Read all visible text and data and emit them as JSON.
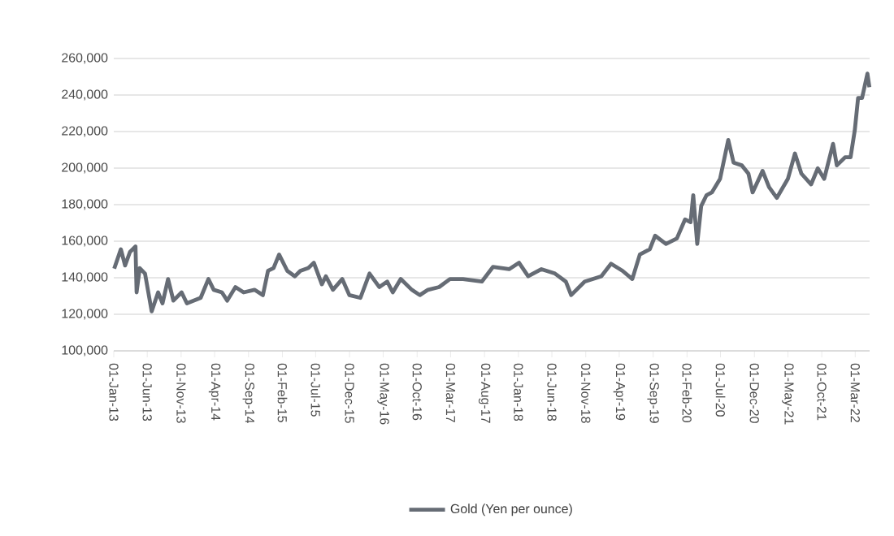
{
  "chart_data": {
    "type": "line",
    "grid": "y",
    "legend": "bottom",
    "xlim": [
      "2013-01-01",
      "2022-05-05"
    ],
    "ylim": [
      100000,
      260000
    ],
    "yticks": [
      {
        "value": 100000,
        "label": "100,000"
      },
      {
        "value": 120000,
        "label": "120,000"
      },
      {
        "value": 140000,
        "label": "140,000"
      },
      {
        "value": 160000,
        "label": "160,000"
      },
      {
        "value": 180000,
        "label": "180,000"
      },
      {
        "value": 200000,
        "label": "200,000"
      },
      {
        "value": 220000,
        "label": "220,000"
      },
      {
        "value": 240000,
        "label": "240,000"
      },
      {
        "value": 260000,
        "label": "260,000"
      }
    ],
    "xticks": [
      {
        "value": "2013-01-01",
        "label": "01-Jan-13"
      },
      {
        "value": "2013-06-01",
        "label": "01-Jun-13"
      },
      {
        "value": "2013-11-01",
        "label": "01-Nov-13"
      },
      {
        "value": "2014-04-01",
        "label": "01-Apr-14"
      },
      {
        "value": "2014-09-01",
        "label": "01-Sep-14"
      },
      {
        "value": "2015-02-01",
        "label": "01-Feb-15"
      },
      {
        "value": "2015-07-01",
        "label": "01-Jul-15"
      },
      {
        "value": "2015-12-01",
        "label": "01-Dec-15"
      },
      {
        "value": "2016-05-01",
        "label": "01-May-16"
      },
      {
        "value": "2016-10-01",
        "label": "01-Oct-16"
      },
      {
        "value": "2017-03-01",
        "label": "01-Mar-17"
      },
      {
        "value": "2017-08-01",
        "label": "01-Aug-17"
      },
      {
        "value": "2018-01-01",
        "label": "01-Jan-18"
      },
      {
        "value": "2018-06-01",
        "label": "01-Jun-18"
      },
      {
        "value": "2018-11-01",
        "label": "01-Nov-18"
      },
      {
        "value": "2019-04-01",
        "label": "01-Apr-19"
      },
      {
        "value": "2019-09-01",
        "label": "01-Sep-19"
      },
      {
        "value": "2020-02-01",
        "label": "01-Feb-20"
      },
      {
        "value": "2020-07-01",
        "label": "01-Jul-20"
      },
      {
        "value": "2020-12-01",
        "label": "01-Dec-20"
      },
      {
        "value": "2021-05-01",
        "label": "01-May-21"
      },
      {
        "value": "2021-10-01",
        "label": "01-Oct-21"
      },
      {
        "value": "2022-03-01",
        "label": "01-Mar-22"
      }
    ],
    "series": [
      {
        "name": "Gold (Yen per ounce)",
        "color": "#666c75",
        "x": [
          "2013-01-03",
          "2013-02-02",
          "2013-02-21",
          "2013-03-15",
          "2013-04-09",
          "2013-04-14",
          "2013-04-28",
          "2013-05-22",
          "2013-06-21",
          "2013-07-20",
          "2013-08-09",
          "2013-09-03",
          "2013-09-27",
          "2013-11-03",
          "2013-11-27",
          "2014-01-28",
          "2014-03-04",
          "2014-03-28",
          "2014-05-04",
          "2014-05-28",
          "2014-07-04",
          "2014-08-10",
          "2014-09-28",
          "2014-11-05",
          "2014-11-28",
          "2014-12-23",
          "2015-01-17",
          "2015-02-23",
          "2015-03-29",
          "2015-04-23",
          "2015-05-29",
          "2015-06-23",
          "2015-07-29",
          "2015-08-16",
          "2015-09-17",
          "2015-10-29",
          "2015-11-30",
          "2016-01-19",
          "2016-02-29",
          "2016-04-13",
          "2016-05-19",
          "2016-06-13",
          "2016-07-19",
          "2016-09-07",
          "2016-10-13",
          "2016-11-19",
          "2017-01-08",
          "2017-02-26",
          "2017-04-26",
          "2017-07-20",
          "2017-09-08",
          "2017-11-20",
          "2018-01-04",
          "2018-02-14",
          "2018-04-15",
          "2018-06-15",
          "2018-08-03",
          "2018-08-27",
          "2018-10-27",
          "2019-01-10",
          "2019-02-23",
          "2019-04-16",
          "2019-05-30",
          "2019-07-03",
          "2019-08-17",
          "2019-09-10",
          "2019-10-29",
          "2019-12-17",
          "2020-01-23",
          "2020-02-17",
          "2020-02-29",
          "2020-03-18",
          "2020-04-05",
          "2020-04-29",
          "2020-05-23",
          "2020-06-29",
          "2020-08-05",
          "2020-08-29",
          "2020-10-05",
          "2020-11-04",
          "2020-11-23",
          "2021-01-07",
          "2021-02-05",
          "2021-03-12",
          "2021-05-01",
          "2021-06-02",
          "2021-07-01",
          "2021-08-14",
          "2021-09-13",
          "2021-10-12",
          "2021-11-21",
          "2021-12-08",
          "2022-01-14",
          "2022-02-08",
          "2022-02-27",
          "2022-03-14",
          "2022-04-01",
          "2022-04-25",
          "2022-05-04"
        ],
        "values": [
          145000,
          155600,
          146700,
          154100,
          157100,
          132000,
          145300,
          142300,
          121600,
          132000,
          126000,
          139300,
          127500,
          132000,
          126000,
          129000,
          139300,
          133400,
          132000,
          127500,
          134900,
          132000,
          133400,
          130500,
          143800,
          145300,
          152700,
          143800,
          140800,
          143800,
          145300,
          148200,
          136400,
          140800,
          133400,
          139300,
          130500,
          129000,
          142300,
          134900,
          137900,
          132000,
          139300,
          133400,
          130500,
          133400,
          134900,
          139300,
          139300,
          137900,
          145900,
          144700,
          148200,
          140800,
          144700,
          142300,
          137900,
          130500,
          137900,
          140800,
          147700,
          143800,
          139300,
          152700,
          155600,
          163000,
          158500,
          161500,
          171900,
          170400,
          185200,
          158500,
          179300,
          185200,
          186700,
          194100,
          215400,
          203000,
          201500,
          197000,
          186700,
          198500,
          189600,
          183700,
          194100,
          208000,
          197000,
          191100,
          199900,
          194100,
          213300,
          201500,
          205900,
          205900,
          220700,
          238400,
          238400,
          251700,
          244300
        ]
      }
    ]
  }
}
